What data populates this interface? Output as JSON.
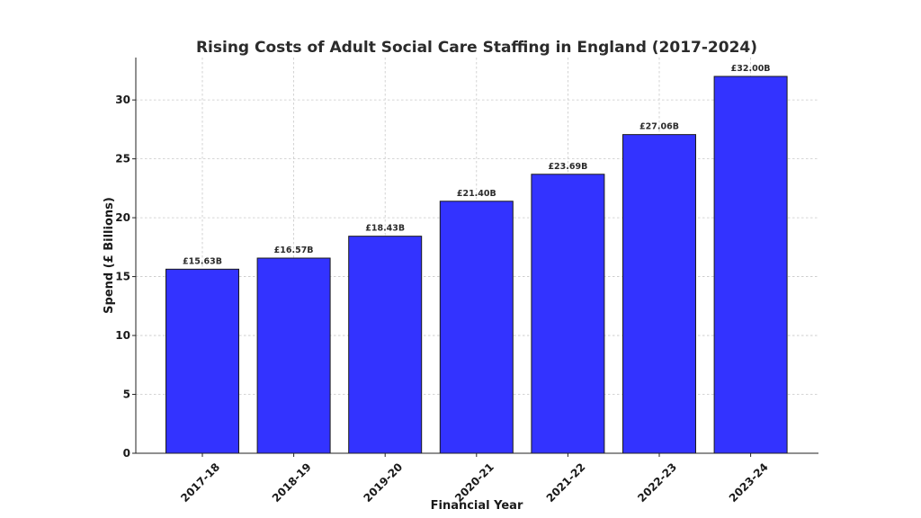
{
  "chart_data": {
    "type": "bar",
    "title": "Rising Costs of Adult Social Care Staffing in England (2017-2024)",
    "xlabel": "Financial Year",
    "ylabel": "Spend (£ Billions)",
    "categories": [
      "2017-18",
      "2018-19",
      "2019-20",
      "2020-21",
      "2021-22",
      "2022-23",
      "2023-24"
    ],
    "values": [
      15.63,
      16.57,
      18.43,
      21.4,
      23.69,
      27.06,
      32.0
    ],
    "data_labels": [
      "£15.63B",
      "£16.57B",
      "£18.43B",
      "£21.40B",
      "£23.69B",
      "£27.06B",
      "£32.00B"
    ],
    "ylim": [
      0,
      33.6
    ],
    "yticks": [
      0,
      5,
      10,
      15,
      20,
      25,
      30
    ],
    "ytick_labels": [
      "0",
      "5",
      "10",
      "15",
      "20",
      "25",
      "30"
    ],
    "grid": true,
    "bar_color": "#3333ff",
    "bar_edge_color": "#1a1a1a"
  }
}
